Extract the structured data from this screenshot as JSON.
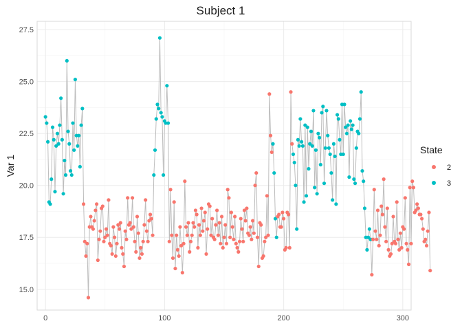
{
  "chart_data": {
    "type": "line",
    "title": "Subject 1",
    "xlabel": "",
    "ylabel": "Var 1",
    "xlim": [
      -7,
      307
    ],
    "ylim": [
      14.0,
      27.9
    ],
    "x_ticks": [
      0,
      100,
      200,
      300
    ],
    "y_ticks": [
      15.0,
      17.5,
      20.0,
      22.5,
      25.0,
      27.5
    ],
    "y_tick_labels": [
      "15.0",
      "17.5",
      "20.0",
      "22.5",
      "25.0",
      "27.5"
    ],
    "grid": true,
    "legend": {
      "title": "State",
      "position": "right",
      "entries": [
        {
          "label": "2",
          "state": 2,
          "color": "#F8766D"
        },
        {
          "label": "3",
          "state": 3,
          "color": "#00BFC4"
        }
      ]
    },
    "line_color": "#bdbdbd",
    "y": [
      23.3,
      23.0,
      22.1,
      19.2,
      19.1,
      20.3,
      22.8,
      22.2,
      19.7,
      21.9,
      22.5,
      22.0,
      22.9,
      24.2,
      22.2,
      19.6,
      21.2,
      20.5,
      26.0,
      22.6,
      22.0,
      20.7,
      20.5,
      23.0,
      21.7,
      25.1,
      22.4,
      21.9,
      22.4,
      20.9,
      22.9,
      23.7,
      19.1,
      17.3,
      16.6,
      17.2,
      14.6,
      18.0,
      18.5,
      18.0,
      17.9,
      18.3,
      18.8,
      19.1,
      16.4,
      17.4,
      17.8,
      18.9,
      19.0,
      17.3,
      17.5,
      17.9,
      17.6,
      19.3,
      17.2,
      17.1,
      16.7,
      18.0,
      17.5,
      16.6,
      17.2,
      18.1,
      17.9,
      18.2,
      17.0,
      16.7,
      16.1,
      17.8,
      17.4,
      19.4,
      18.1,
      18.2,
      17.9,
      19.4,
      18.0,
      17.3,
      16.8,
      18.5,
      17.7,
      16.5,
      17.0,
      16.7,
      17.3,
      18.1,
      19.3,
      17.8,
      17.3,
      18.3,
      18.6,
      18.4,
      17.6,
      20.5,
      21.7,
      23.2,
      23.9,
      23.7,
      27.1,
      23.5,
      23.3,
      20.5,
      23.1,
      23.0,
      24.8,
      23.0,
      17.3,
      19.8,
      17.6,
      16.5,
      19.2,
      16.0,
      17.6,
      16.9,
      16.6,
      18.0,
      17.1,
      15.8,
      17.2,
      20.2,
      18.0,
      17.6,
      18.2,
      16.8,
      17.3,
      17.6,
      18.2,
      18.0,
      18.8,
      18.6,
      17.0,
      18.1,
      17.6,
      18.9,
      17.8,
      18.3,
      18.7,
      16.7,
      17.9,
      19.1,
      19.0,
      17.6,
      18.4,
      17.5,
      17.4,
      18.1,
      18.8,
      17.6,
      18.2,
      17.2,
      18.5,
      17.0,
      17.5,
      18.1,
      17.2,
      19.8,
      19.4,
      17.5,
      18.7,
      18.0,
      17.4,
      18.5,
      17.2,
      17.0,
      16.8,
      17.3,
      18.4,
      17.9,
      17.3,
      18.8,
      18.3,
      18.9,
      17.7,
      17.6,
      18.0,
      17.4,
      18.3,
      17.7,
      20.0,
      20.6,
      17.5,
      16.1,
      18.2,
      18.1,
      16.5,
      16.6,
      17.3,
      17.5,
      19.5,
      17.6,
      24.4,
      22.4,
      21.6,
      22.0,
      20.6,
      18.4,
      17.5,
      18.5,
      18.6,
      18.0,
      18.0,
      18.7,
      18.4,
      16.9,
      17.0,
      18.7,
      18.6,
      17.0,
      24.5,
      22.0,
      21.5,
      21.1,
      20.0,
      17.9,
      22.2,
      21.9,
      23.2,
      22.1,
      21.9,
      19.2,
      22.9,
      19.5,
      22.8,
      20.8,
      22.0,
      22.6,
      21.9,
      23.6,
      19.9,
      21.7,
      19.6,
      22.5,
      22.3,
      21.0,
      23.5,
      23.8,
      20.1,
      21.8,
      23.6,
      22.4,
      21.8,
      21.5,
      20.6,
      19.3,
      22.0,
      21.4,
      19.1,
      23.4,
      23.2,
      22.2,
      21.5,
      23.9,
      21.5,
      23.9,
      22.8,
      22.5,
      22.9,
      20.4,
      23.1,
      22.7,
      22.9,
      20.3,
      20.1,
      21.8,
      22.6,
      22.5,
      23.2,
      24.5,
      20.7,
      20.2,
      18.9,
      17.5,
      16.9,
      17.5,
      17.9,
      17.4,
      15.7,
      17.4,
      19.8,
      17.8,
      17.4,
      18.8,
      17.1,
      17.6,
      19.0,
      18.6,
      20.3,
      18.0,
      17.3,
      18.9,
      16.9,
      16.6,
      16.7,
      17.2,
      18.5,
      17.3,
      17.2,
      19.2,
      17.4,
      16.9,
      17.7,
      17.0,
      18.0,
      17.9,
      19.4,
      17.2,
      16.9,
      16.2,
      19.9,
      17.2,
      20.2,
      19.9,
      18.7,
      18.8,
      19.1,
      18.9,
      18.6,
      18.6,
      18.4,
      17.9,
      17.3,
      17.4,
      17.1,
      17.8,
      18.7,
      15.9
    ],
    "state": [
      3,
      3,
      3,
      3,
      3,
      3,
      3,
      3,
      3,
      3,
      3,
      3,
      3,
      3,
      3,
      3,
      3,
      3,
      3,
      3,
      3,
      3,
      3,
      3,
      3,
      3,
      3,
      3,
      3,
      3,
      3,
      3,
      2,
      2,
      2,
      2,
      2,
      2,
      2,
      2,
      2,
      2,
      2,
      2,
      2,
      2,
      2,
      2,
      2,
      2,
      2,
      2,
      2,
      2,
      2,
      2,
      2,
      2,
      2,
      2,
      2,
      2,
      2,
      2,
      2,
      2,
      2,
      2,
      2,
      2,
      2,
      2,
      2,
      2,
      2,
      2,
      2,
      2,
      2,
      2,
      2,
      2,
      2,
      2,
      2,
      2,
      2,
      2,
      2,
      2,
      2,
      3,
      3,
      3,
      3,
      3,
      3,
      3,
      3,
      3,
      3,
      3,
      3,
      3,
      2,
      2,
      2,
      2,
      2,
      2,
      2,
      2,
      2,
      2,
      2,
      2,
      2,
      2,
      2,
      2,
      2,
      2,
      2,
      2,
      2,
      2,
      2,
      2,
      2,
      2,
      2,
      2,
      2,
      2,
      2,
      2,
      2,
      2,
      2,
      2,
      2,
      2,
      2,
      2,
      2,
      2,
      2,
      2,
      2,
      2,
      2,
      2,
      2,
      2,
      2,
      2,
      2,
      2,
      2,
      2,
      2,
      2,
      2,
      2,
      2,
      2,
      2,
      2,
      2,
      2,
      2,
      2,
      2,
      2,
      2,
      2,
      2,
      2,
      2,
      2,
      2,
      2,
      2,
      2,
      2,
      2,
      2,
      2,
      2,
      2,
      2,
      3,
      3,
      3,
      3,
      2,
      2,
      2,
      2,
      2,
      2,
      2,
      2,
      2,
      2,
      2,
      2,
      2,
      3,
      3,
      3,
      3,
      3,
      3,
      3,
      3,
      3,
      3,
      3,
      3,
      3,
      3,
      3,
      3,
      3,
      3,
      3,
      3,
      3,
      3,
      3,
      3,
      3,
      3,
      3,
      3,
      3,
      3,
      3,
      3,
      3,
      3,
      3,
      3,
      3,
      3,
      3,
      3,
      3,
      3,
      3,
      3,
      3,
      3,
      3,
      3,
      3,
      3,
      3,
      3,
      3,
      3,
      3,
      3,
      3,
      3,
      3,
      3,
      3,
      3,
      3,
      3,
      3,
      3,
      2,
      2,
      2,
      2,
      2,
      2,
      2,
      2,
      2,
      2,
      2,
      2,
      2,
      2,
      2,
      2,
      2,
      2,
      2,
      2,
      2,
      2,
      2,
      2,
      2,
      2,
      2,
      2,
      2,
      2,
      2,
      2,
      2,
      2,
      2,
      2,
      2,
      2,
      2,
      2,
      2,
      2,
      2,
      2,
      2,
      2,
      2,
      2,
      2,
      2,
      2,
      2,
      2,
      2,
      2,
      2
    ]
  }
}
